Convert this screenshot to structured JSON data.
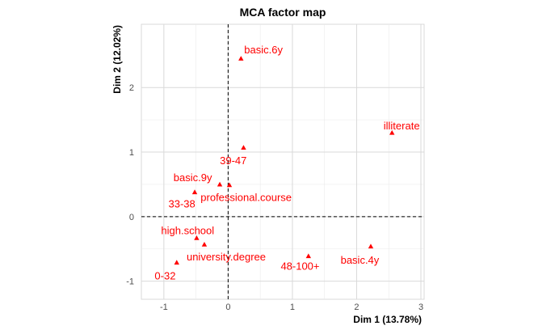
{
  "chart_data": {
    "type": "scatter",
    "title": "MCA factor map",
    "xlabel": "Dim 1 (13.78%)",
    "ylabel": "Dim 2 (12.02%)",
    "xlim": [
      -1.35,
      3.05
    ],
    "ylim": [
      -1.28,
      2.98
    ],
    "x_ticks": [
      -1,
      0,
      1,
      2,
      3
    ],
    "y_ticks": [
      -1,
      0,
      1,
      2
    ],
    "x_tick_labels": [
      "-1",
      "0",
      "1",
      "2",
      "3"
    ],
    "y_tick_labels": [
      "-1",
      "0",
      "1",
      "2"
    ],
    "grid": true,
    "reference_lines": {
      "x": 0,
      "y": 0,
      "style": "dashed"
    },
    "marker": "triangle",
    "color": "#ff0000",
    "points": [
      {
        "label": "basic.6y",
        "x": 0.2,
        "y": 2.45,
        "label_x": 0.55,
        "label_y": 2.58
      },
      {
        "label": "illiterate",
        "x": 2.55,
        "y": 1.3,
        "label_x": 2.7,
        "label_y": 1.4
      },
      {
        "label": "39-47",
        "x": 0.24,
        "y": 1.07,
        "label_x": 0.08,
        "label_y": 0.86
      },
      {
        "label": "basic.9y",
        "x": -0.13,
        "y": 0.5,
        "label_x": -0.55,
        "label_y": 0.6
      },
      {
        "label": "professional.course",
        "x": 0.02,
        "y": 0.49,
        "label_x": 0.28,
        "label_y": 0.29
      },
      {
        "label": "33-38",
        "x": -0.52,
        "y": 0.38,
        "label_x": -0.72,
        "label_y": 0.19
      },
      {
        "label": "high.school",
        "x": -0.49,
        "y": -0.33,
        "label_x": -0.63,
        "label_y": -0.22
      },
      {
        "label": "university.degree",
        "x": -0.37,
        "y": -0.43,
        "label_x": -0.03,
        "label_y": -0.63
      },
      {
        "label": "0-32",
        "x": -0.8,
        "y": -0.71,
        "label_x": -0.98,
        "label_y": -0.92
      },
      {
        "label": "48-100+",
        "x": 1.25,
        "y": -0.61,
        "label_x": 1.12,
        "label_y": -0.77
      },
      {
        "label": "basic.4y",
        "x": 2.22,
        "y": -0.46,
        "label_x": 2.05,
        "label_y": -0.68
      }
    ]
  }
}
